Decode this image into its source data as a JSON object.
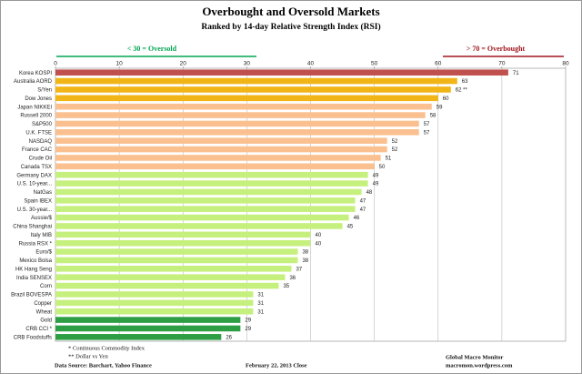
{
  "chart_data": {
    "type": "bar",
    "orientation": "horizontal",
    "title": "Overbought and Oversold Markets",
    "subtitle": "Ranked by 14-day Relative Strength Index (RSI)",
    "oversold_label": "< 30 = Oversold",
    "oversold_color": "#00a651",
    "overbought_label": "> 70 = Overbought",
    "overbought_color": "#a0171e",
    "categories": [
      "Korea KOSPI",
      "Australia AORD",
      "S/Yen",
      "Dow Jones",
      "Japan NIKKEI",
      "Russell 2000",
      "S&P500",
      "U.K. FTSE",
      "NASDAQ",
      "France CAC",
      "Crude Oil",
      "Canada TSX",
      "Germany DAX",
      "U.S. 10-year...",
      "NatGas",
      "Spain IBEX",
      "U.S. 30-year...",
      "Aussie/$",
      "China Shanghai",
      "Italy  MIB",
      "Russia RSX *",
      "Euro/$",
      "Mexico Bolsa",
      "HK Hang Seng",
      "India SENSEX",
      "Corn",
      "Brazil BOVESPA",
      "Copper",
      "Wheat",
      "Gold",
      "CRB CCI *",
      "CRB Foodstuffs"
    ],
    "values": [
      71,
      63,
      62,
      60,
      59,
      58,
      57,
      57,
      52,
      52,
      51,
      50,
      49,
      49,
      48,
      47,
      47,
      46,
      45,
      40,
      40,
      38,
      38,
      37,
      36,
      35,
      31,
      31,
      31,
      29,
      29,
      26
    ],
    "value_labels": [
      "71",
      "63",
      "62  **",
      "60",
      "59",
      "58",
      "57",
      "57",
      "52",
      "52",
      "51",
      "50",
      "49",
      "49",
      "48",
      "47",
      "47",
      "46",
      "45",
      "40",
      "40",
      "38",
      "38",
      "37",
      "36",
      "35",
      "31",
      "31",
      "31",
      "29",
      "29",
      "26"
    ],
    "colors": [
      "#c0504d",
      "#f2b517",
      "#f2b517",
      "#f2b517",
      "#fac090",
      "#fac090",
      "#fac090",
      "#fac090",
      "#fac090",
      "#fac090",
      "#fac090",
      "#fac090",
      "#c6f07d",
      "#c6f07d",
      "#c6f07d",
      "#c6f07d",
      "#c6f07d",
      "#c6f07d",
      "#c6f07d",
      "#c6f07d",
      "#c6f07d",
      "#c6f07d",
      "#c6f07d",
      "#c6f07d",
      "#c6f07d",
      "#c6f07d",
      "#c6f07d",
      "#c6f07d",
      "#c6f07d",
      "#2e9e45",
      "#2e9e45",
      "#2e9e45"
    ],
    "xlim": [
      0,
      80
    ],
    "xticks": [
      0,
      10,
      20,
      30,
      40,
      50,
      60,
      70,
      80
    ],
    "grid": true,
    "notes": [
      "* Continuous Commodity Index",
      "** Dollar vs Yen"
    ],
    "source": "Data Source:  Barchart, Yahoo Finance",
    "date": "February 22, 2013  Close",
    "brand": "Global Macro Monitor",
    "url": "macromon.wordpress.com"
  }
}
